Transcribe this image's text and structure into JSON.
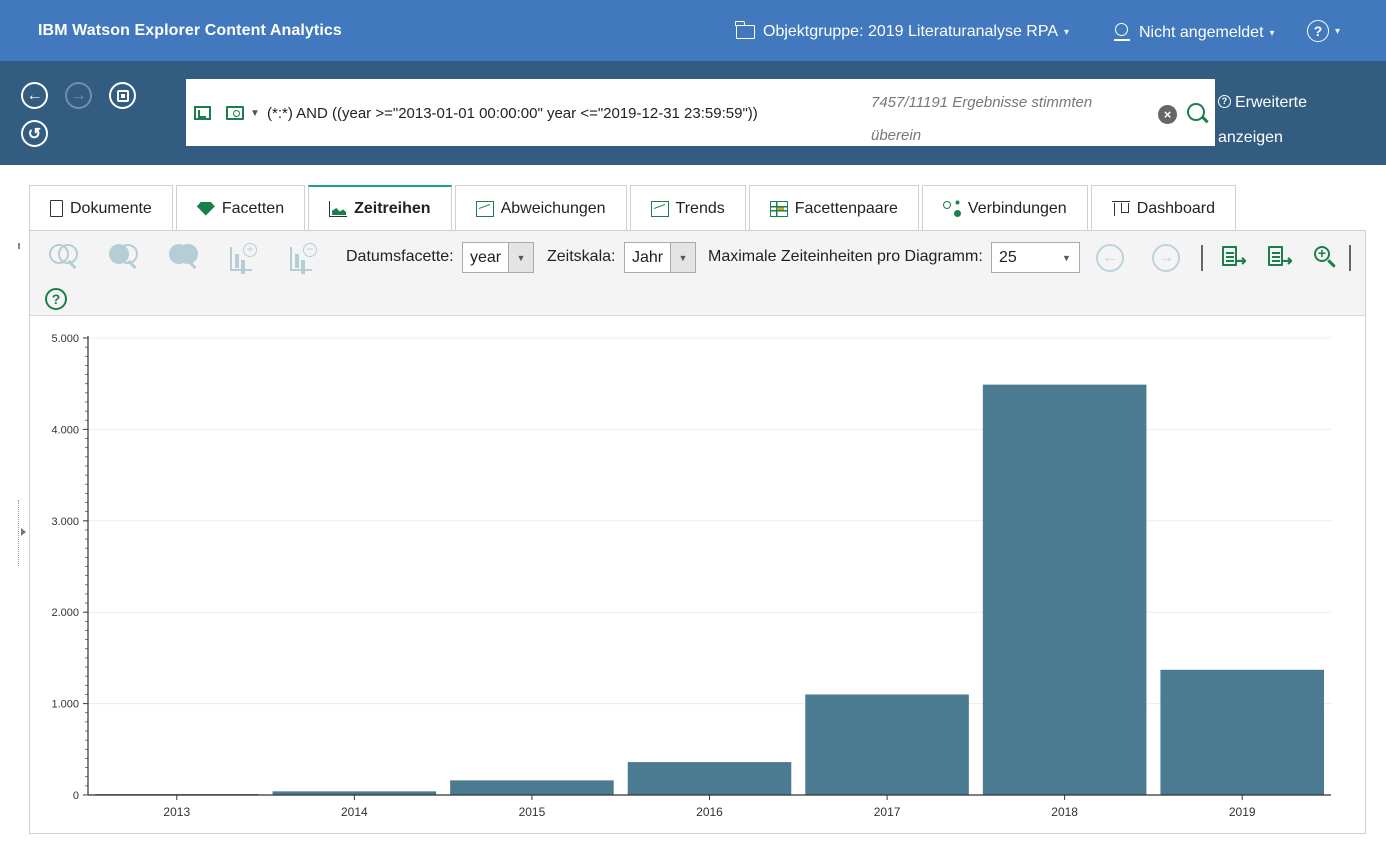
{
  "header": {
    "app_title": "IBM Watson Explorer Content Analytics",
    "collection": "Objektgruppe: 2019 Literaturanalyse RPA",
    "user": "Nicht angemeldet",
    "help": "?",
    "bg_color": "#4178be"
  },
  "search": {
    "query": "(*:*) AND ((year >=\"2013-01-01 00:00:00\" year <=\"2019-12-31 23:59:59\"))",
    "result_count": "7457/11191 Ergebnisse stimmten überein",
    "advanced_label": "Erweiterte anzeigen",
    "bg_color": "#325c80"
  },
  "tabs": [
    {
      "label": "Dokumente",
      "icon": "document-icon"
    },
    {
      "label": "Facetten",
      "icon": "diamond-icon"
    },
    {
      "label": "Zeitreihen",
      "icon": "area-chart-icon",
      "active": true
    },
    {
      "label": "Abweichungen",
      "icon": "deviation-chart-icon"
    },
    {
      "label": "Trends",
      "icon": "trend-chart-icon"
    },
    {
      "label": "Facettenpaare",
      "icon": "table-icon"
    },
    {
      "label": "Verbindungen",
      "icon": "network-icon"
    },
    {
      "label": "Dashboard",
      "icon": "dashboard-icon"
    }
  ],
  "toolbar": {
    "date_facet_label": "Datumsfacette:",
    "date_facet_value": "year",
    "time_scale_label": "Zeitskala:",
    "time_scale_value": "Jahr",
    "max_units_label": "Maximale Zeiteinheiten pro Diagramm:",
    "max_units_value": "25"
  },
  "chart_data": {
    "type": "bar",
    "categories": [
      "2013",
      "2014",
      "2015",
      "2016",
      "2017",
      "2018",
      "2019"
    ],
    "values": [
      10,
      40,
      160,
      360,
      1100,
      4490,
      1370
    ],
    "ylim": [
      0,
      5000
    ],
    "yticks": [
      0,
      1000,
      2000,
      3000,
      4000,
      5000
    ],
    "ytick_labels": [
      "0",
      "1.000",
      "2.000",
      "3.000",
      "4.000",
      "5.000"
    ],
    "bar_color": "#4a7b91",
    "grid": true
  }
}
